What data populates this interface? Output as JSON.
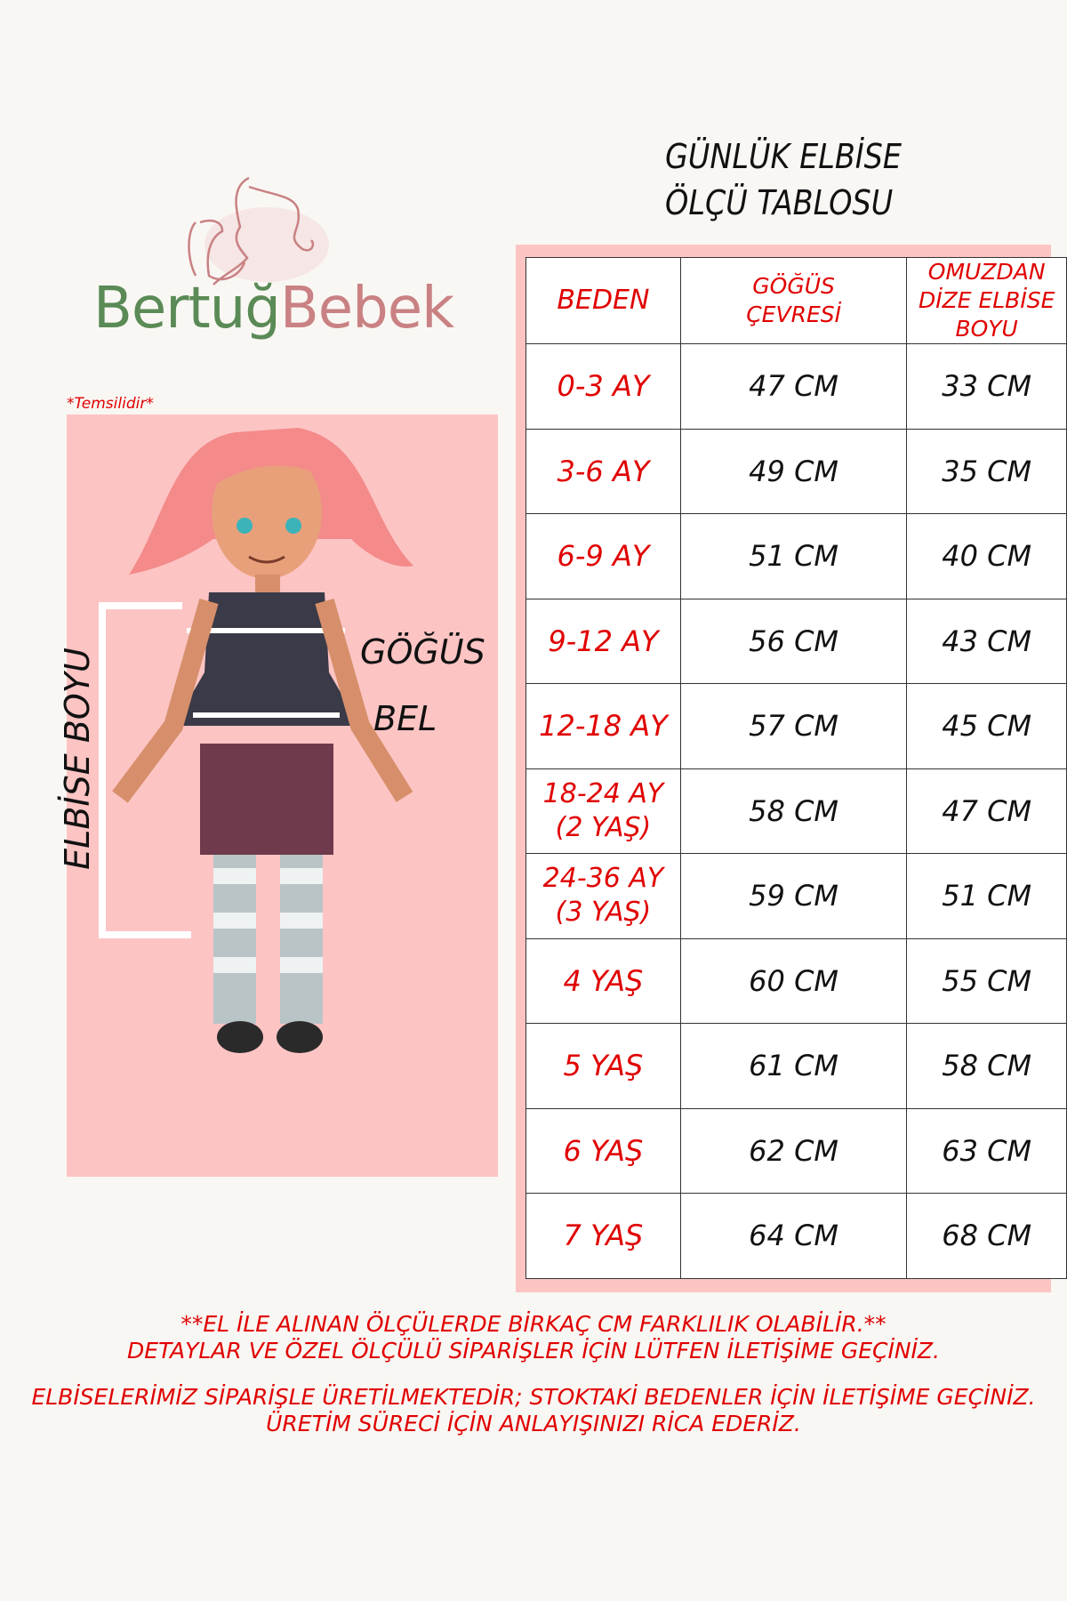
{
  "logo": {
    "brand_part1": "Bertuğ",
    "brand_part2": "Bebek",
    "colors": {
      "green": "#5a8a55",
      "pink": "#c98183"
    }
  },
  "illustration": {
    "note": "*Temsilidir*",
    "labels": {
      "length": "ELBİSE BOYU",
      "chest": "GÖĞÜS",
      "waist": "BEL"
    },
    "background": "#fdc4c4"
  },
  "title": {
    "line1": "GÜNLÜK ELBİSE",
    "line2": "ÖLÇÜ TABLOSU"
  },
  "table": {
    "headers": [
      "BEDEN",
      "GÖĞÜS ÇEVRESİ",
      "OMUZDAN DİZE ELBİSE BOYU"
    ],
    "rows": [
      [
        "0-3 AY",
        "47 CM",
        "33 CM"
      ],
      [
        "3-6 AY",
        "49 CM",
        "35 CM"
      ],
      [
        "6-9 AY",
        "51 CM",
        "40 CM"
      ],
      [
        "9-12 AY",
        "56 CM",
        "43 CM"
      ],
      [
        "12-18 AY",
        "57 CM",
        "45 CM"
      ],
      [
        "18-24 AY (2 YAŞ)",
        "58 CM",
        "47 CM"
      ],
      [
        "24-36 AY (3 YAŞ)",
        "59 CM",
        "51 CM"
      ],
      [
        "4 YAŞ",
        "60 CM",
        "55 CM"
      ],
      [
        "5 YAŞ",
        "61 CM",
        "58 CM"
      ],
      [
        "6 YAŞ",
        "62 CM",
        "63 CM"
      ],
      [
        "7 YAŞ",
        "64 CM",
        "68 CM"
      ]
    ],
    "accent": "#e00000"
  },
  "footer": {
    "line1": "**EL İLE ALINAN ÖLÇÜLERDE BİRKAÇ CM FARKLILIK OLABİLİR.**",
    "line2": "DETAYLAR VE ÖZEL ÖLÇÜLÜ SİPARİŞLER İÇİN LÜTFEN İLETİŞİME GEÇİNİZ.",
    "line3": "ELBİSELERİMİZ SİPARİŞLE ÜRETİLMEKTEDİR; STOKTAKİ BEDENLER İÇİN İLETİŞİME GEÇİNİZ.",
    "line4": "ÜRETİM SÜRECİ İÇİN ANLAYIŞINIZI RİCA EDERİZ."
  }
}
